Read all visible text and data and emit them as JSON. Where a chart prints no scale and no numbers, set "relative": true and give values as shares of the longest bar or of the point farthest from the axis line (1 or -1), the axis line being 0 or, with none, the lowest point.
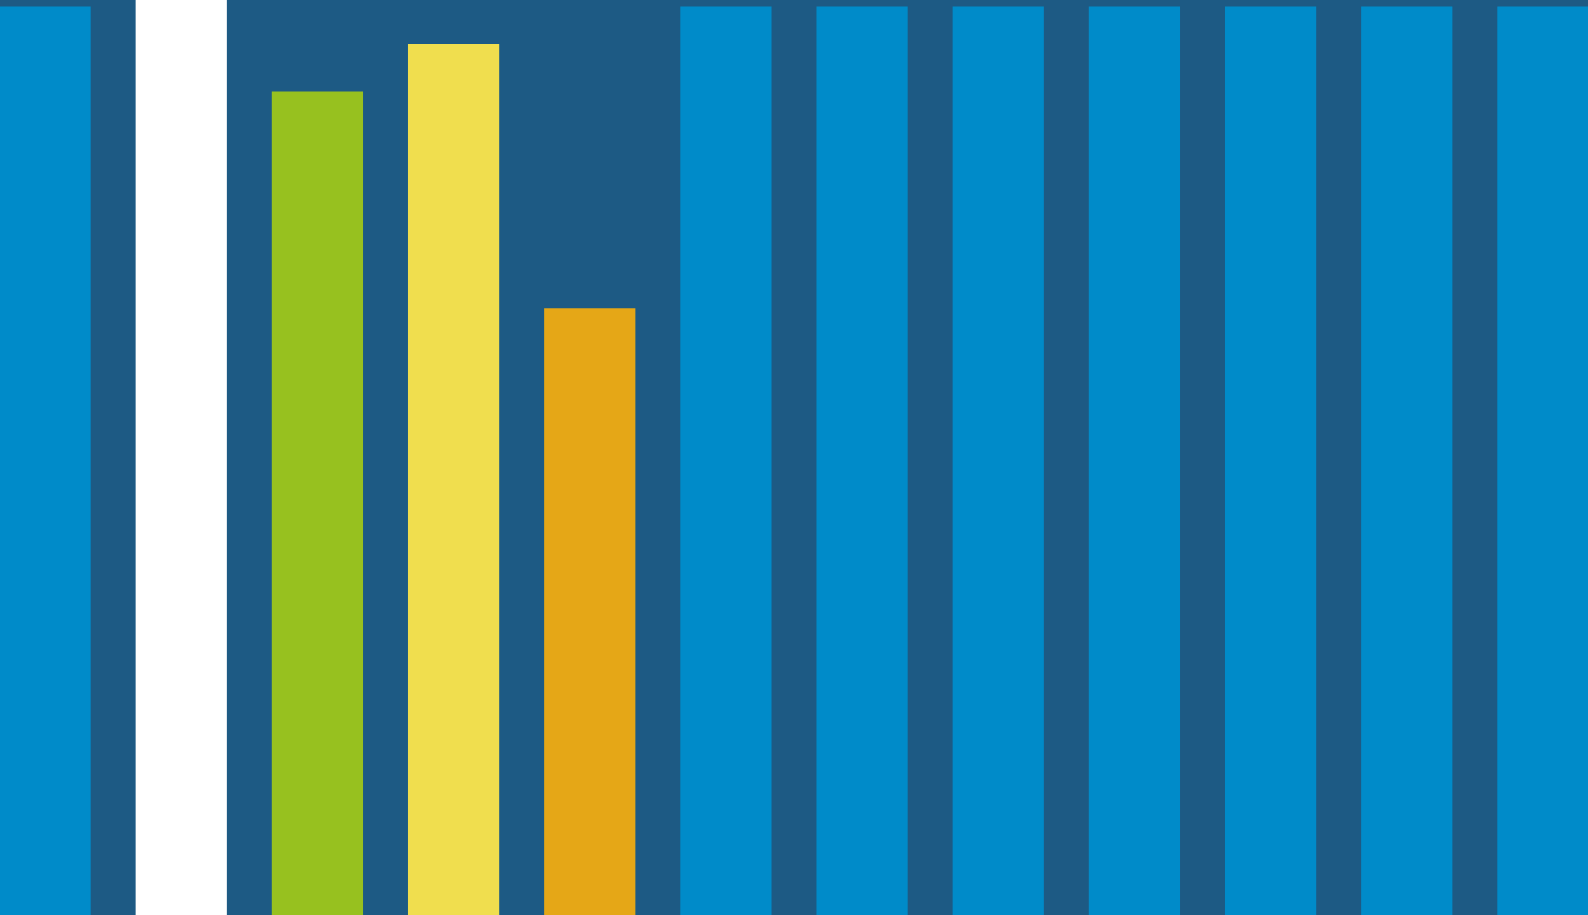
{
  "chart_data": {
    "type": "bar",
    "relative": true,
    "categories": [
      null,
      null,
      null,
      null,
      null,
      null,
      null,
      null,
      null,
      null,
      null,
      null
    ],
    "values": [
      0.993,
      1,
      0.9,
      0.952,
      0.663,
      0.993,
      0.993,
      0.993,
      0.993,
      0.993,
      0.993,
      0.993
    ],
    "colors": [
      "#008bc9",
      "#ffffff",
      "#97c11f",
      "#f0de4e",
      "#e5a717",
      "#008bc9",
      "#008bc9",
      "#008bc9",
      "#008bc9",
      "#008bc9",
      "#008bc9",
      "#008bc9"
    ],
    "legend": false
  }
}
